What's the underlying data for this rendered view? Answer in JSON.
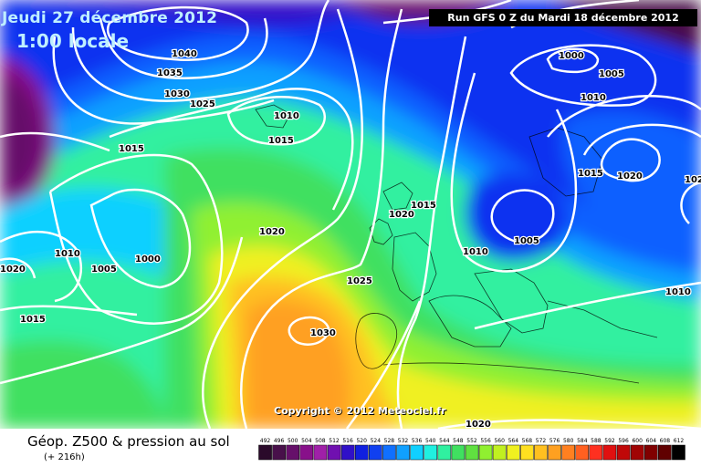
{
  "overlay": {
    "date": "Jeudi 27 décembre 2012",
    "time": "1:00 locale",
    "run_info": "Run GFS 0 Z du Mardi 18 décembre 2012",
    "copyright": "Copyright © 2012 Meteociel.fr"
  },
  "legend": {
    "title": "Géop. Z500 & pression au sol",
    "subtitle": "(+ 216h)",
    "scale_labels": [
      "492",
      "496",
      "500",
      "504",
      "508",
      "512",
      "516",
      "520",
      "524",
      "528",
      "532",
      "536",
      "540",
      "544",
      "548",
      "552",
      "556",
      "560",
      "564",
      "568",
      "572",
      "576",
      "580",
      "584",
      "588",
      "592",
      "596",
      "600",
      "604",
      "608",
      "612"
    ],
    "scale_colors": [
      "#2a0a2a",
      "#48104a",
      "#66106a",
      "#88108a",
      "#a020a8",
      "#7010b0",
      "#3010c8",
      "#1020e0",
      "#1040f0",
      "#1070ff",
      "#10a0ff",
      "#10d0ff",
      "#20f0e0",
      "#30f0a0",
      "#40e060",
      "#60e040",
      "#90f030",
      "#c0f020",
      "#f0f020",
      "#ffe020",
      "#ffc020",
      "#ffa020",
      "#ff8020",
      "#ff6020",
      "#ff3020",
      "#e01010",
      "#c00808",
      "#a00404",
      "#800000",
      "#600000",
      "#000000"
    ]
  },
  "isobars": [
    {
      "label": "1040"
    },
    {
      "label": "1035"
    },
    {
      "label": "1030"
    },
    {
      "label": "1025"
    },
    {
      "label": "1010"
    },
    {
      "label": "1015"
    },
    {
      "label": "1015"
    },
    {
      "label": "1010"
    },
    {
      "label": "1005"
    },
    {
      "label": "1000"
    },
    {
      "label": "1020"
    },
    {
      "label": "1015"
    },
    {
      "label": "1020"
    },
    {
      "label": "1025"
    },
    {
      "label": "1030"
    },
    {
      "label": "1020"
    },
    {
      "label": "1015"
    },
    {
      "label": "1010"
    },
    {
      "label": "1005"
    },
    {
      "label": "1000"
    },
    {
      "label": "1005"
    },
    {
      "label": "1010"
    },
    {
      "label": "1015"
    },
    {
      "label": "1020"
    },
    {
      "label": "1010"
    },
    {
      "label": "1020"
    },
    {
      "label": "1020"
    }
  ],
  "colors": {
    "deep_low": "#500a5a",
    "blue_trough": "#1020e0",
    "isobar": "#ffffff"
  }
}
